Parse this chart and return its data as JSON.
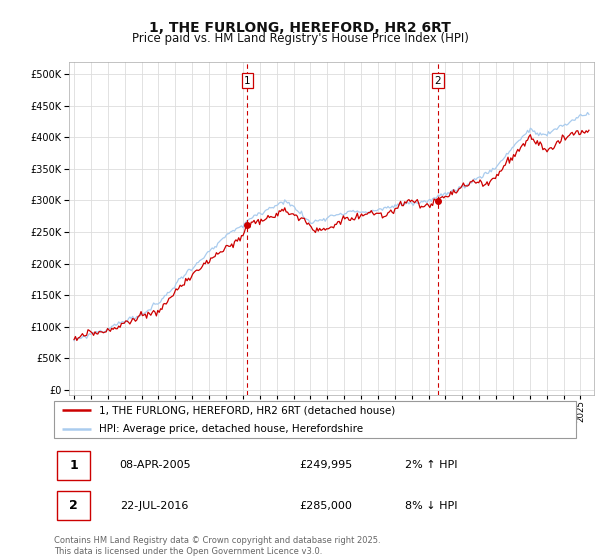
{
  "title": "1, THE FURLONG, HEREFORD, HR2 6RT",
  "subtitle": "Price paid vs. HM Land Registry's House Price Index (HPI)",
  "yticks": [
    0,
    50000,
    100000,
    150000,
    200000,
    250000,
    300000,
    350000,
    400000,
    450000,
    500000
  ],
  "ylim": [
    -8000,
    520000
  ],
  "xlim_start": 1994.7,
  "xlim_end": 2025.8,
  "annotation1": {
    "label": "1",
    "date_x": 2005.27,
    "price": 249995,
    "text": "08-APR-2005",
    "price_text": "£249,995",
    "pct_text": "2% ↑ HPI"
  },
  "annotation2": {
    "label": "2",
    "date_x": 2016.55,
    "price": 285000,
    "text": "22-JUL-2016",
    "price_text": "£285,000",
    "pct_text": "8% ↓ HPI"
  },
  "legend_label_red": "1, THE FURLONG, HEREFORD, HR2 6RT (detached house)",
  "legend_label_blue": "HPI: Average price, detached house, Herefordshire",
  "footer": "Contains HM Land Registry data © Crown copyright and database right 2025.\nThis data is licensed under the Open Government Licence v3.0.",
  "red_color": "#cc0000",
  "blue_color": "#aaccee",
  "grid_color": "#dddddd",
  "background_color": "#ffffff",
  "title_fontsize": 10,
  "subtitle_fontsize": 8.5,
  "annotation_dashed_color": "#cc0000"
}
